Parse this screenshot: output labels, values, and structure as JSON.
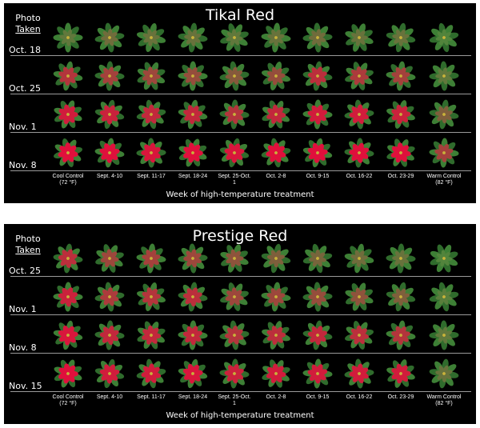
{
  "panels": [
    {
      "title": "Tikal Red",
      "photo_label": [
        "Photo",
        "Taken"
      ],
      "dates": [
        "Oct. 18",
        "Oct. 25",
        "Nov. 1",
        "Nov. 8"
      ],
      "columns": [
        "Cool Control (72 °F)",
        "Sept. 4-10",
        "Sept. 11-17",
        "Sept. 18-24",
        "Sept. 25-Oct. 1",
        "Oct. 2-8",
        "Oct. 9-15",
        "Oct. 16-22",
        "Oct. 23-29",
        "Warm Control (82 °F)"
      ],
      "axis_title": "Week of high-temperature treatment"
    },
    {
      "title": "Prestige Red",
      "photo_label": [
        "Photo",
        "Taken"
      ],
      "dates": [
        "Oct. 25",
        "Nov. 1",
        "Nov. 8",
        "Nov. 15"
      ],
      "columns": [
        "Cool Control (72 °F)",
        "Sept. 4-10",
        "Sept. 11-17",
        "Sept. 18-24",
        "Sept. 25-Oct. 1",
        "Oct. 2-8",
        "Oct. 9-15",
        "Oct. 16-22",
        "Oct. 23-29",
        "Warm Control (82 °F)"
      ],
      "axis_title": "Week of high-temperature treatment"
    }
  ],
  "bract_redness": [
    [
      [
        0.15,
        0.25,
        0.2,
        0.2,
        0.15,
        0.2,
        0.25,
        0.2,
        0.2,
        0.05
      ],
      [
        0.7,
        0.6,
        0.55,
        0.5,
        0.4,
        0.5,
        0.75,
        0.65,
        0.6,
        0.15
      ],
      [
        0.9,
        0.85,
        0.8,
        0.8,
        0.7,
        0.8,
        0.9,
        0.9,
        0.85,
        0.35
      ],
      [
        1.0,
        1.0,
        0.95,
        1.0,
        0.95,
        1.0,
        1.0,
        1.0,
        1.0,
        0.6
      ]
    ],
    [
      [
        0.75,
        0.55,
        0.6,
        0.55,
        0.45,
        0.35,
        0.3,
        0.25,
        0.2,
        0.05
      ],
      [
        0.85,
        0.65,
        0.7,
        0.75,
        0.55,
        0.55,
        0.5,
        0.45,
        0.35,
        0.1
      ],
      [
        0.95,
        0.8,
        0.8,
        0.8,
        0.7,
        0.75,
        0.8,
        0.75,
        0.7,
        0.15
      ],
      [
        1.0,
        0.9,
        0.9,
        0.95,
        0.85,
        0.9,
        0.9,
        0.9,
        0.9,
        0.2
      ]
    ]
  ],
  "colors": {
    "background": "#000000",
    "bract": "#e0103c",
    "leaf": "#2f6b2c",
    "separator": "#9a9a9a"
  }
}
